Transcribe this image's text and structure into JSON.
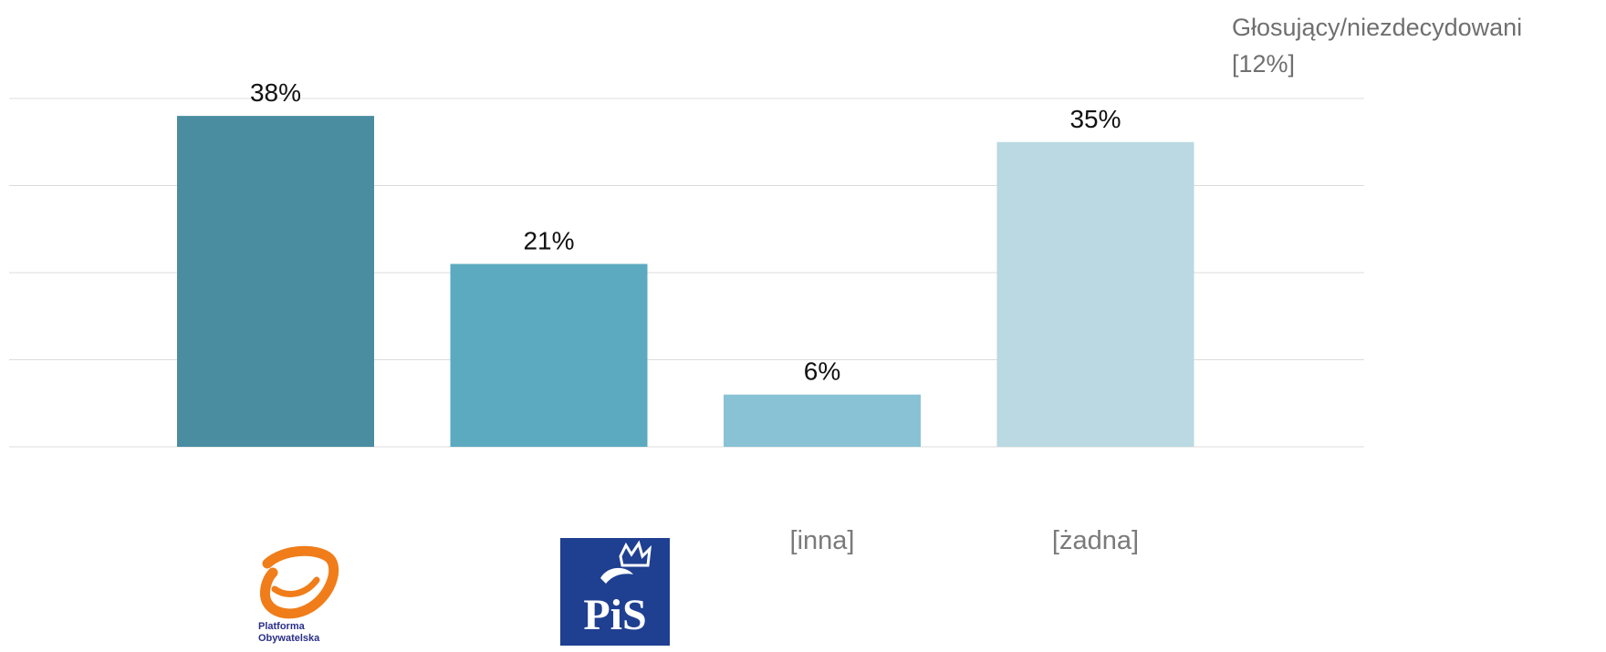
{
  "subtitle": {
    "line1": "Głosujący/niezdecydowani",
    "line2": "[12%]"
  },
  "colors": {
    "grid": "#dcdcdc",
    "po_logo": "#f07d1a",
    "pis_logo_bg": "#1f3f91"
  },
  "logos": {
    "po": {
      "line1": "Platforma",
      "line2": "Obywatelska"
    },
    "pis": {
      "text": "PiS"
    }
  },
  "chart_data": {
    "type": "bar",
    "categories": [
      "Platforma Obywatelska",
      "PiS",
      "[inna]",
      "[żadna]"
    ],
    "category_display": [
      "logo",
      "logo",
      "text",
      "text"
    ],
    "values": [
      38,
      21,
      6,
      35
    ],
    "labels": [
      "38%",
      "21%",
      "6%",
      "35%"
    ],
    "bar_colors": [
      "#4a8da0",
      "#5caac0",
      "#89c2d4",
      "#bad9e2"
    ],
    "unit": "%",
    "ylim": [
      0,
      40
    ],
    "gridlines": [
      0,
      10,
      20,
      30,
      40
    ],
    "grid": true,
    "title": "",
    "xlabel": "",
    "ylabel": ""
  }
}
